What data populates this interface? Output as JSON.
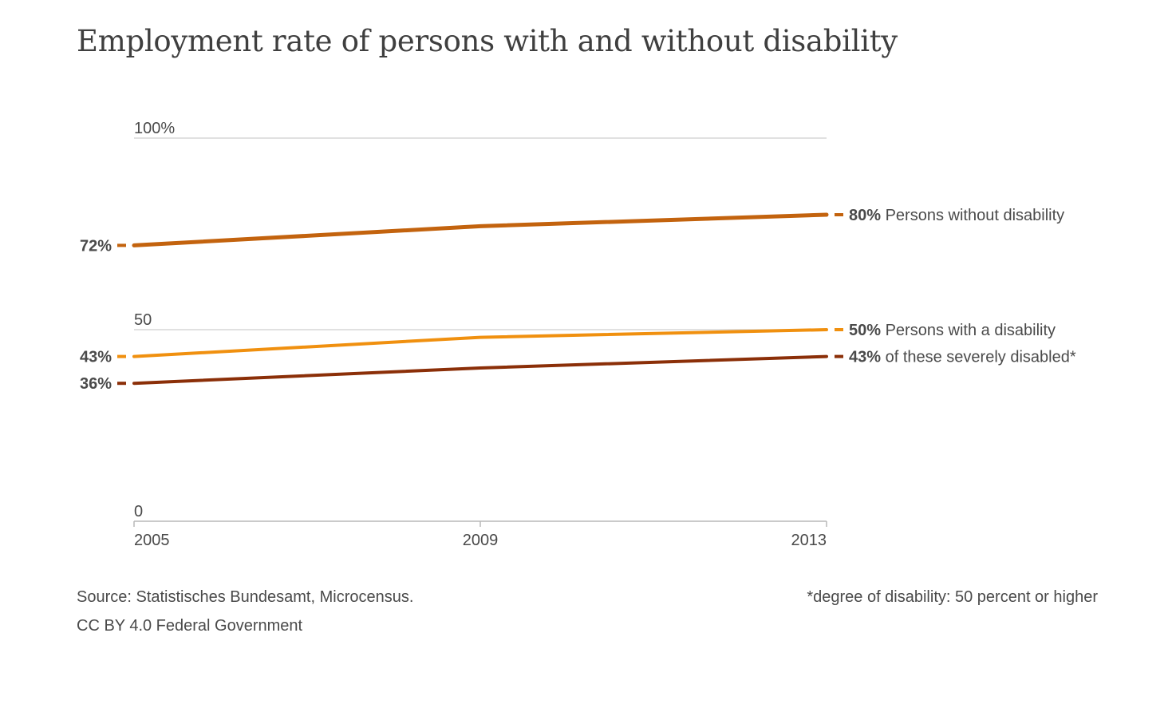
{
  "page_title": "Employment rate of persons with and without disability",
  "footer": {
    "source": "Source: Statistisches Bundesamt, Microcensus.",
    "license": "CC BY 4.0 Federal Government",
    "footnote": "*degree of disability: 50 percent or higher"
  },
  "chart_data": {
    "type": "line",
    "title": "Employment rate of persons with and without disability",
    "x": [
      2005,
      2009,
      2013
    ],
    "x_tick_labels": [
      "2005",
      "2009",
      "2013"
    ],
    "ylim": [
      0,
      100
    ],
    "y_ticks": [
      0,
      50,
      100
    ],
    "y_tick_labels": [
      "0",
      "50",
      "100%"
    ],
    "grid": "horizontal",
    "legend": "end-of-line labels (right)",
    "series": [
      {
        "name": "Persons without disability",
        "values": [
          72,
          77,
          80
        ],
        "start_label": "72%",
        "end_value_label": "80%",
        "color": "#c3630e",
        "width": 5
      },
      {
        "name": "Persons with a disability",
        "values": [
          43,
          48,
          50
        ],
        "start_label": "43%",
        "end_value_label": "50%",
        "color": "#f0900f",
        "width": 4
      },
      {
        "name": "of these severely disabled*",
        "values": [
          36,
          40,
          43
        ],
        "start_label": "36%",
        "end_value_label": "43%",
        "color": "#8b2f08",
        "width": 4
      }
    ],
    "colors": {
      "text": "#4a4a4a",
      "grid": "#cfcfcf",
      "axis": "#b9b9b9"
    }
  }
}
